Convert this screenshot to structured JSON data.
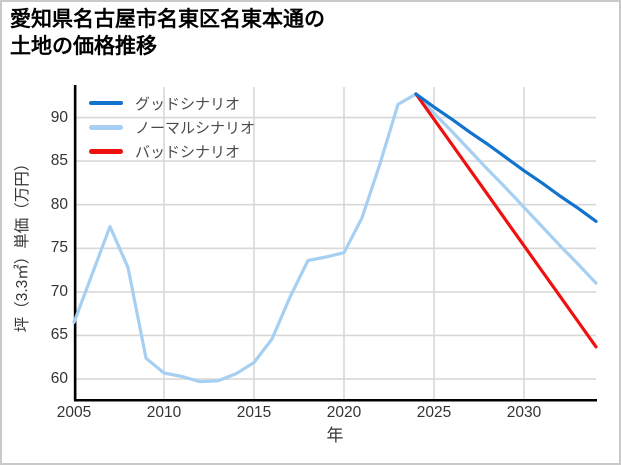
{
  "page": {
    "background": "#ffffff",
    "border_color": "#c9c9c9"
  },
  "header": {
    "title": "愛知県名古屋市名東区名東本通の\n土地の価格推移"
  },
  "chart_data": {
    "type": "line",
    "title": "愛知県名古屋市名東区名東本通の 土地の価格推移",
    "xlabel": "年",
    "ylabel": "坪（3.3㎡）単価（万円）",
    "xlim": [
      2005,
      2034
    ],
    "ylim": [
      57.6,
      93.5
    ],
    "xticks": [
      2005,
      2010,
      2015,
      2020,
      2025,
      2030
    ],
    "yticks": [
      60,
      65,
      70,
      75,
      80,
      85,
      90
    ],
    "grid": true,
    "grid_color": "#d8d8d8",
    "axis_color": "#000000",
    "tick_label_color": "#333333",
    "legend_text_color": "#4a4a4a",
    "legend_position": "upper-left-inside",
    "series": [
      {
        "name": "グッドシナリオ",
        "role": "good-scenario-forecast",
        "color": "#1173cd",
        "x": [
          2024,
          2025,
          2026,
          2027,
          2028,
          2029,
          2030,
          2031,
          2032,
          2033,
          2034
        ],
        "values": [
          92.7,
          91.2,
          89.8,
          88.3,
          86.9,
          85.4,
          83.9,
          82.5,
          81.0,
          79.6,
          78.1
        ]
      },
      {
        "name": "ノーマルシナリオ",
        "role": "historical-and-normal-forecast",
        "color": "#a6cff2",
        "x": [
          2005,
          2006,
          2007,
          2008,
          2009,
          2010,
          2011,
          2012,
          2013,
          2014,
          2015,
          2016,
          2017,
          2018,
          2019,
          2020,
          2021,
          2022,
          2023,
          2024,
          2025,
          2026,
          2027,
          2028,
          2029,
          2030,
          2031,
          2032,
          2033,
          2034
        ],
        "values": [
          66.5,
          72.0,
          77.5,
          72.8,
          62.4,
          60.7,
          60.3,
          59.7,
          59.8,
          60.6,
          61.9,
          64.6,
          69.4,
          73.6,
          74.0,
          74.5,
          78.5,
          84.7,
          91.5,
          92.7,
          90.5,
          88.4,
          86.2,
          84.0,
          81.9,
          79.7,
          77.5,
          75.3,
          73.2,
          71.0
        ]
      },
      {
        "name": "バッドシナリオ",
        "role": "bad-scenario-forecast",
        "color": "#ef1010",
        "x": [
          2024,
          2025,
          2026,
          2027,
          2028,
          2029,
          2030,
          2031,
          2032,
          2033,
          2034
        ],
        "values": [
          92.7,
          89.8,
          86.9,
          84.0,
          81.1,
          78.2,
          75.3,
          72.4,
          69.5,
          66.6,
          63.7
        ]
      }
    ]
  }
}
